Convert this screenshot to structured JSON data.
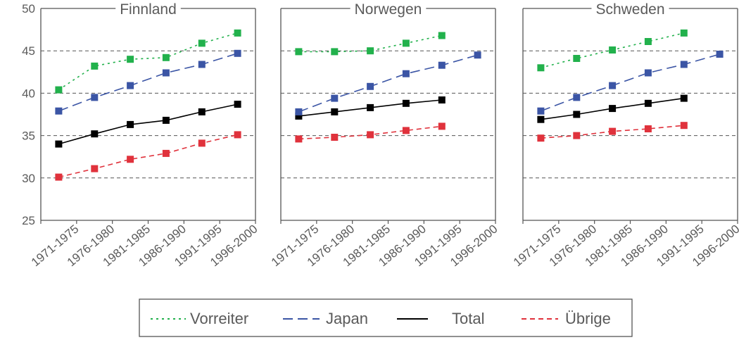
{
  "chart_data": {
    "type": "line",
    "categories": [
      "1971-1975",
      "1976-1980",
      "1981-1985",
      "1986-1990",
      "1991-1995",
      "1996-2000"
    ],
    "ylim": [
      25,
      50
    ],
    "yticks": [
      25,
      30,
      35,
      40,
      45,
      50
    ],
    "grid": true,
    "legend_position": "bottom",
    "panels": [
      {
        "title": "Finnland",
        "series": [
          {
            "name": "Vorreiter",
            "values": [
              40.4,
              43.2,
              44.0,
              44.2,
              45.9,
              47.1
            ]
          },
          {
            "name": "Japan",
            "values": [
              37.9,
              39.5,
              40.9,
              42.4,
              43.4,
              44.7
            ]
          },
          {
            "name": "Total",
            "values": [
              34.0,
              35.2,
              36.3,
              36.8,
              37.8,
              38.7
            ]
          },
          {
            "name": "Übrige",
            "values": [
              30.1,
              31.1,
              32.2,
              32.9,
              34.1,
              35.1
            ]
          }
        ]
      },
      {
        "title": "Norwegen",
        "series": [
          {
            "name": "Vorreiter",
            "values": [
              44.9,
              44.9,
              45.0,
              45.9,
              46.8,
              null
            ]
          },
          {
            "name": "Japan",
            "values": [
              37.8,
              39.4,
              40.8,
              42.3,
              43.3,
              44.5
            ]
          },
          {
            "name": "Total",
            "values": [
              37.3,
              37.8,
              38.3,
              38.8,
              39.2,
              null
            ]
          },
          {
            "name": "Übrige",
            "values": [
              34.6,
              34.8,
              35.1,
              35.6,
              36.1,
              null
            ]
          }
        ]
      },
      {
        "title": "Schweden",
        "series": [
          {
            "name": "Vorreiter",
            "values": [
              43.0,
              44.1,
              45.1,
              46.1,
              47.1,
              null
            ]
          },
          {
            "name": "Japan",
            "values": [
              37.9,
              39.5,
              40.9,
              42.4,
              43.4,
              44.6
            ]
          },
          {
            "name": "Total",
            "values": [
              36.9,
              37.5,
              38.2,
              38.8,
              39.4,
              null
            ]
          },
          {
            "name": "Übrige",
            "values": [
              34.7,
              35.0,
              35.5,
              35.8,
              36.2,
              null
            ]
          }
        ]
      }
    ],
    "series_colors": {
      "Vorreiter": "#22b14c",
      "Japan": "#3b55a5",
      "Total": "#000000",
      "Übrige": "#e0323c"
    },
    "series_dash": {
      "Vorreiter": "dotted",
      "Japan": "long-dash",
      "Total": "solid",
      "Übrige": "dashed"
    }
  }
}
